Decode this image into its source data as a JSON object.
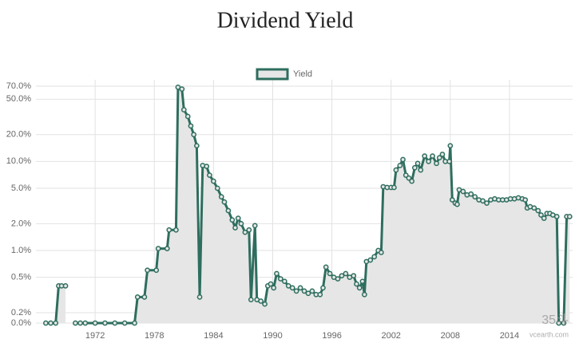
{
  "chart_data": {
    "type": "line",
    "title": "Dividend Yield",
    "log_scale": true,
    "grid": true,
    "legend": "top",
    "fill": true,
    "xlim": [
      1966,
      2020.4
    ],
    "xticks": [
      1972,
      1978,
      1984,
      1990,
      1996,
      2002,
      2008,
      2014
    ],
    "ylim": [
      0,
      70
    ],
    "yticks": [
      {
        "value": 0,
        "label": "0.0%"
      },
      {
        "value": 0.2,
        "label": "0.2%"
      },
      {
        "value": 0.5,
        "label": "0.5%"
      },
      {
        "value": 1,
        "label": "1.0%"
      },
      {
        "value": 2,
        "label": "2.0%"
      },
      {
        "value": 5,
        "label": "5.0%"
      },
      {
        "value": 10,
        "label": "10.0%"
      },
      {
        "value": 20,
        "label": "20.0%"
      },
      {
        "value": 50,
        "label": "50.0%"
      },
      {
        "value": 70,
        "label": "70.0%"
      }
    ],
    "x": [
      1967.0,
      1967.5,
      1968.0,
      1968.3,
      1968.6,
      1969.0,
      1969.4,
      1970.0,
      1970.5,
      1971.0,
      1972.0,
      1973.0,
      1974.0,
      1975.0,
      1976.0,
      1976.3,
      1977.0,
      1977.3,
      1978.2,
      1978.4,
      1979.3,
      1979.5,
      1980.2,
      1980.4,
      1980.8,
      1981.0,
      1981.4,
      1981.7,
      1982.0,
      1982.3,
      1982.6,
      1982.9,
      1983.3,
      1983.6,
      1984.0,
      1984.4,
      1984.8,
      1985.1,
      1985.5,
      1985.9,
      1986.2,
      1986.5,
      1986.8,
      1987.2,
      1987.6,
      1987.8,
      1988.2,
      1988.4,
      1988.8,
      1989.2,
      1989.5,
      1989.8,
      1990.1,
      1990.4,
      1990.8,
      1991.2,
      1991.6,
      1992.0,
      1992.4,
      1992.8,
      1993.2,
      1993.6,
      1994.0,
      1994.4,
      1994.8,
      1995.1,
      1995.4,
      1995.8,
      1996.2,
      1996.6,
      1997.0,
      1997.4,
      1997.8,
      1998.2,
      1998.5,
      1998.8,
      1999.1,
      1999.3,
      1999.5,
      1999.9,
      2000.3,
      2000.7,
      2001.0,
      2001.2,
      2001.6,
      2002.0,
      2002.3,
      2002.5,
      2002.9,
      2003.2,
      2003.5,
      2003.8,
      2004.1,
      2004.4,
      2004.7,
      2005.0,
      2005.4,
      2005.8,
      2006.2,
      2006.6,
      2006.9,
      2007.2,
      2007.5,
      2007.9,
      2008.0,
      2008.2,
      2008.5,
      2008.7,
      2008.9,
      2009.3,
      2009.7,
      2010.1,
      2010.5,
      2010.9,
      2011.3,
      2011.7,
      2012.1,
      2012.5,
      2012.9,
      2013.3,
      2013.7,
      2014.1,
      2014.5,
      2014.9,
      2015.3,
      2015.6,
      2015.8,
      2016.1,
      2016.5,
      2016.9,
      2017.2,
      2017.5,
      2017.8,
      2018.1,
      2018.4,
      2018.8,
      2019.0,
      2019.5,
      2019.8,
      2020.1
    ],
    "series": [
      {
        "name": "Yield",
        "color": "#2e6e5e",
        "fill_color": "#e6e6e6",
        "values": [
          0,
          0,
          0,
          0.4,
          0.4,
          0.4,
          null,
          0,
          0,
          0,
          0,
          0,
          0,
          0,
          0,
          0.3,
          0.3,
          0.6,
          0.6,
          1.05,
          1.05,
          1.7,
          1.7,
          68,
          65,
          38,
          32,
          25,
          20,
          15,
          0.3,
          9,
          8.8,
          7,
          6,
          5,
          4,
          3.5,
          2.8,
          2.2,
          1.8,
          2.3,
          2,
          1.6,
          1.7,
          0.28,
          1.9,
          0.28,
          0.27,
          0.25,
          0.4,
          0.42,
          0.38,
          0.55,
          0.48,
          0.45,
          0.4,
          0.38,
          0.35,
          0.38,
          0.35,
          0.33,
          0.35,
          0.32,
          0.32,
          0.38,
          0.65,
          0.55,
          0.5,
          0.48,
          0.52,
          0.55,
          0.5,
          0.52,
          0.42,
          0.38,
          0.45,
          0.32,
          0.75,
          0.78,
          0.85,
          1.0,
          0.95,
          5.2,
          5.1,
          5.1,
          5.1,
          8,
          9,
          10.5,
          7,
          6.5,
          6,
          8.5,
          9.5,
          8,
          11.5,
          10,
          11.5,
          9.5,
          11,
          12,
          10,
          10,
          15,
          3.7,
          3.4,
          3.3,
          4.8,
          4.6,
          4.2,
          4.3,
          4.0,
          3.7,
          3.6,
          3.4,
          3.7,
          3.8,
          3.7,
          3.7,
          3.7,
          3.8,
          3.8,
          3.9,
          3.8,
          3.7,
          3.0,
          3.1,
          3.0,
          2.8,
          2.5,
          2.3,
          2.6,
          2.6,
          2.5,
          2.4,
          0,
          0,
          2.4,
          2.4
        ]
      }
    ],
    "watermark": [
      "35斗",
      "vcearth.com"
    ]
  }
}
